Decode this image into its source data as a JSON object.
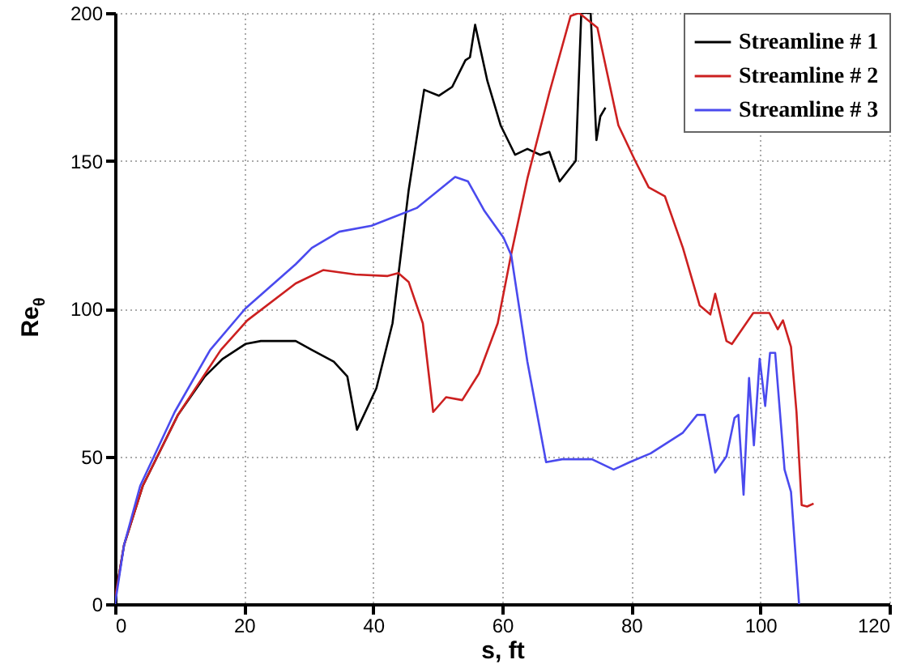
{
  "chart_data": {
    "type": "line",
    "xlabel": "s, ft",
    "ylabel": "Re$_{θ}$",
    "xlim": [
      0,
      120
    ],
    "xticks": [
      0,
      20,
      40,
      60,
      80,
      100,
      120
    ],
    "ylim": [
      0,
      200
    ],
    "yticks": [
      0,
      50,
      100,
      150,
      200
    ],
    "grid": true,
    "legend": "top right",
    "marker": "none",
    "line_style": "solid",
    "series": [
      {
        "name": "Streamline # 1",
        "color": "#000000",
        "x": [
          0,
          1.4,
          4.3,
          9.75,
          13.9,
          16.7,
          20.2,
          22.6,
          28,
          30.5,
          33.9,
          36,
          37.5,
          40.5,
          43,
          45.5,
          47.9,
          50.2,
          52.25,
          54.3,
          55,
          55.8,
          57.7,
          59.75,
          62,
          63.9,
          65.9,
          67.3,
          68.9,
          71.4,
          72.25,
          73.7,
          74.6,
          75.2,
          76
        ],
        "values": [
          2,
          20,
          40,
          64,
          77,
          83,
          88,
          89,
          89,
          86,
          82,
          77,
          59,
          73,
          95,
          140,
          174,
          172,
          175,
          184,
          185,
          196,
          177,
          162,
          152,
          154,
          152,
          153,
          143,
          150,
          200,
          200,
          157,
          165,
          168
        ]
      },
      {
        "name": "Streamline # 2",
        "color": "#cc2020",
        "x": [
          0,
          1.4,
          4.3,
          9.75,
          16.4,
          20.5,
          28,
          32.25,
          37.25,
          42.25,
          43.9,
          45.5,
          47.7,
          49.3,
          51.3,
          53.8,
          56.4,
          59.3,
          61.4,
          63.9,
          67.3,
          70.6,
          71.9,
          74.75,
          78,
          80.6,
          82.7,
          85.2,
          88,
          90.6,
          92.25,
          93,
          94.75,
          95.6,
          98.9,
          101.4,
          102.7,
          103.5,
          104.75,
          105.6,
          106.4,
          107.25,
          108.25
        ],
        "values": [
          2,
          20,
          40,
          64,
          86,
          96,
          108.5,
          113,
          111.5,
          111,
          112,
          109,
          95,
          65,
          70,
          69,
          78,
          95,
          118.5,
          144,
          173,
          199,
          200,
          195,
          162,
          150,
          141,
          138,
          120.5,
          101,
          98,
          105,
          89,
          88,
          98.5,
          98.5,
          93,
          96,
          87,
          65,
          33.5,
          33,
          34
        ]
      },
      {
        "name": "Streamline # 3",
        "color": "#4a4aee",
        "x": [
          0,
          1.4,
          3.9,
          9.25,
          14.75,
          20.2,
          28,
          30.5,
          34.75,
          39.75,
          46.75,
          52.7,
          54.7,
          57.25,
          60.2,
          61.4,
          63.9,
          66.8,
          69.3,
          73.9,
          77.25,
          79.75,
          83,
          88,
          90.2,
          91.4,
          93,
          94.75,
          96,
          96.6,
          97.4,
          98.25,
          99,
          99.9,
          100.75,
          101.5,
          102.3,
          103.75,
          104.75,
          106
        ],
        "values": [
          0,
          20,
          40,
          65,
          86,
          100,
          115,
          120.5,
          126,
          128,
          134,
          144.5,
          143,
          133,
          124,
          118,
          82,
          48,
          49,
          49,
          45.5,
          48,
          51,
          58,
          64,
          64,
          44.5,
          50,
          63,
          64,
          37,
          76.5,
          53.7,
          83,
          67,
          85,
          85,
          45.5,
          38,
          0
        ]
      }
    ]
  }
}
